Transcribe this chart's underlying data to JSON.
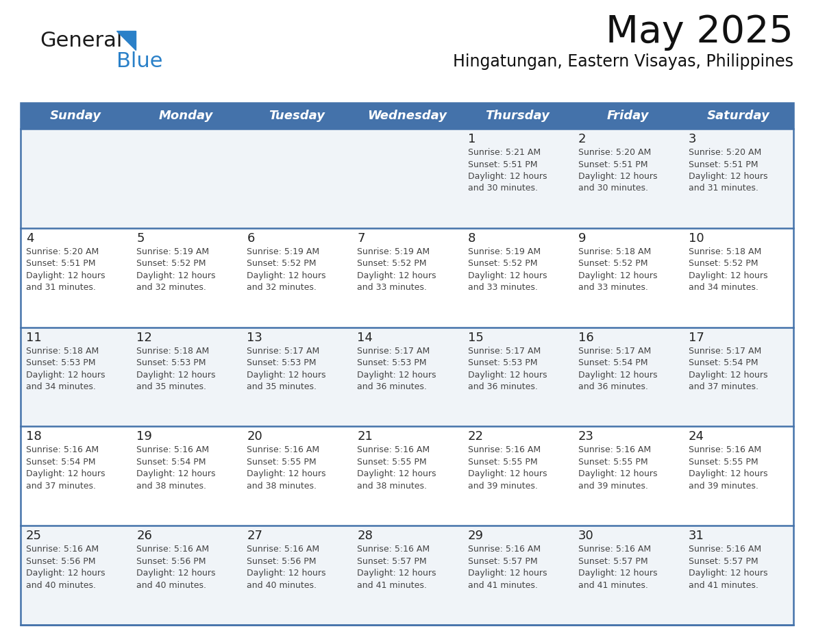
{
  "title": "May 2025",
  "subtitle": "Hingatungan, Eastern Visayas, Philippines",
  "days_of_week": [
    "Sunday",
    "Monday",
    "Tuesday",
    "Wednesday",
    "Thursday",
    "Friday",
    "Saturday"
  ],
  "header_bg": "#4472aa",
  "header_text": "#ffffff",
  "row_bg_odd": "#f0f4f8",
  "row_bg_even": "#ffffff",
  "cell_text_color": "#444444",
  "day_number_color": "#222222",
  "separator_color": "#4472aa",
  "calendar_data": [
    [
      null,
      null,
      null,
      null,
      {
        "day": 1,
        "sunrise": "5:21 AM",
        "sunset": "5:51 PM",
        "daylight_suffix": "30 minutes."
      },
      {
        "day": 2,
        "sunrise": "5:20 AM",
        "sunset": "5:51 PM",
        "daylight_suffix": "30 minutes."
      },
      {
        "day": 3,
        "sunrise": "5:20 AM",
        "sunset": "5:51 PM",
        "daylight_suffix": "31 minutes."
      }
    ],
    [
      {
        "day": 4,
        "sunrise": "5:20 AM",
        "sunset": "5:51 PM",
        "daylight_suffix": "31 minutes."
      },
      {
        "day": 5,
        "sunrise": "5:19 AM",
        "sunset": "5:52 PM",
        "daylight_suffix": "32 minutes."
      },
      {
        "day": 6,
        "sunrise": "5:19 AM",
        "sunset": "5:52 PM",
        "daylight_suffix": "32 minutes."
      },
      {
        "day": 7,
        "sunrise": "5:19 AM",
        "sunset": "5:52 PM",
        "daylight_suffix": "33 minutes."
      },
      {
        "day": 8,
        "sunrise": "5:19 AM",
        "sunset": "5:52 PM",
        "daylight_suffix": "33 minutes."
      },
      {
        "day": 9,
        "sunrise": "5:18 AM",
        "sunset": "5:52 PM",
        "daylight_suffix": "33 minutes."
      },
      {
        "day": 10,
        "sunrise": "5:18 AM",
        "sunset": "5:52 PM",
        "daylight_suffix": "34 minutes."
      }
    ],
    [
      {
        "day": 11,
        "sunrise": "5:18 AM",
        "sunset": "5:53 PM",
        "daylight_suffix": "34 minutes."
      },
      {
        "day": 12,
        "sunrise": "5:18 AM",
        "sunset": "5:53 PM",
        "daylight_suffix": "35 minutes."
      },
      {
        "day": 13,
        "sunrise": "5:17 AM",
        "sunset": "5:53 PM",
        "daylight_suffix": "35 minutes."
      },
      {
        "day": 14,
        "sunrise": "5:17 AM",
        "sunset": "5:53 PM",
        "daylight_suffix": "36 minutes."
      },
      {
        "day": 15,
        "sunrise": "5:17 AM",
        "sunset": "5:53 PM",
        "daylight_suffix": "36 minutes."
      },
      {
        "day": 16,
        "sunrise": "5:17 AM",
        "sunset": "5:54 PM",
        "daylight_suffix": "36 minutes."
      },
      {
        "day": 17,
        "sunrise": "5:17 AM",
        "sunset": "5:54 PM",
        "daylight_suffix": "37 minutes."
      }
    ],
    [
      {
        "day": 18,
        "sunrise": "5:16 AM",
        "sunset": "5:54 PM",
        "daylight_suffix": "37 minutes."
      },
      {
        "day": 19,
        "sunrise": "5:16 AM",
        "sunset": "5:54 PM",
        "daylight_suffix": "38 minutes."
      },
      {
        "day": 20,
        "sunrise": "5:16 AM",
        "sunset": "5:55 PM",
        "daylight_suffix": "38 minutes."
      },
      {
        "day": 21,
        "sunrise": "5:16 AM",
        "sunset": "5:55 PM",
        "daylight_suffix": "38 minutes."
      },
      {
        "day": 22,
        "sunrise": "5:16 AM",
        "sunset": "5:55 PM",
        "daylight_suffix": "39 minutes."
      },
      {
        "day": 23,
        "sunrise": "5:16 AM",
        "sunset": "5:55 PM",
        "daylight_suffix": "39 minutes."
      },
      {
        "day": 24,
        "sunrise": "5:16 AM",
        "sunset": "5:55 PM",
        "daylight_suffix": "39 minutes."
      }
    ],
    [
      {
        "day": 25,
        "sunrise": "5:16 AM",
        "sunset": "5:56 PM",
        "daylight_suffix": "40 minutes."
      },
      {
        "day": 26,
        "sunrise": "5:16 AM",
        "sunset": "5:56 PM",
        "daylight_suffix": "40 minutes."
      },
      {
        "day": 27,
        "sunrise": "5:16 AM",
        "sunset": "5:56 PM",
        "daylight_suffix": "40 minutes."
      },
      {
        "day": 28,
        "sunrise": "5:16 AM",
        "sunset": "5:57 PM",
        "daylight_suffix": "41 minutes."
      },
      {
        "day": 29,
        "sunrise": "5:16 AM",
        "sunset": "5:57 PM",
        "daylight_suffix": "41 minutes."
      },
      {
        "day": 30,
        "sunrise": "5:16 AM",
        "sunset": "5:57 PM",
        "daylight_suffix": "41 minutes."
      },
      {
        "day": 31,
        "sunrise": "5:16 AM",
        "sunset": "5:57 PM",
        "daylight_suffix": "41 minutes."
      }
    ]
  ],
  "logo_text1": "General",
  "logo_text2": "Blue",
  "logo_text1_color": "#1a1a1a",
  "logo_text2_color": "#2a80c8",
  "logo_triangle_color": "#2a80c8",
  "title_fontsize": 40,
  "subtitle_fontsize": 17,
  "header_fontsize": 13,
  "day_number_fontsize": 13,
  "cell_text_fontsize": 9
}
